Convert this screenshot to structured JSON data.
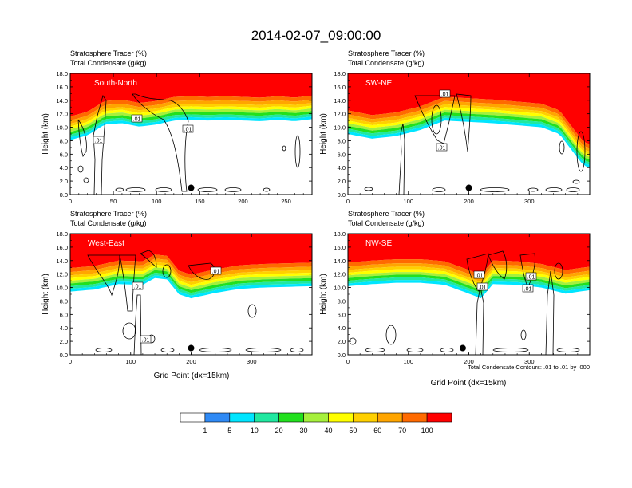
{
  "figure": {
    "title": "2014-02-07_09:00:00",
    "footnote": "Total Condensate Contours: .01 to .01 by .000"
  },
  "colorbar": {
    "colors": [
      "#ffffff",
      "#2f8af5",
      "#00e5ff",
      "#20e8a0",
      "#22e01e",
      "#a6f03c",
      "#ffff00",
      "#ffd000",
      "#ffa500",
      "#ff6a00",
      "#ff0000"
    ],
    "labels": [
      "1",
      "5",
      "10",
      "20",
      "30",
      "40",
      "50",
      "60",
      "70",
      "100"
    ]
  },
  "chart_data": [
    {
      "type": "heatmap",
      "panel": "South-North",
      "title_lines": [
        "Stratosphere Tracer   (%)",
        "Total Condensate   (g/kg)"
      ],
      "ylabel": "Height (km)",
      "xlabel": "",
      "xlim": [
        0,
        280
      ],
      "ylim": [
        0,
        18
      ],
      "x_ticks": [
        "0",
        "50",
        "100",
        "150",
        "200",
        "250"
      ],
      "y_ticks": [
        "0.0",
        "2.0",
        "4.0",
        "6.0",
        "8.0",
        "10.0",
        "12.0",
        "14.0",
        "16.0",
        "18.0"
      ],
      "contour_labels": [
        ".01",
        ".01",
        ".01"
      ],
      "tracer_top_profile": {
        "x": [
          0,
          20,
          40,
          60,
          80,
          100,
          120,
          140,
          160,
          180,
          200,
          220,
          240,
          260,
          280
        ],
        "y": [
          12.3,
          13.0,
          14.6,
          14.8,
          14.3,
          14.6,
          15.2,
          15.3,
          15.2,
          15.3,
          15.2,
          15.1,
          15.3,
          15.1,
          15.4
        ]
      },
      "marker": {
        "x": 140,
        "y": 1.0
      }
    },
    {
      "type": "heatmap",
      "panel": "SW-NE",
      "title_lines": [
        "Stratosphere Tracer   (%)",
        "Total Condensate   (g/kg)"
      ],
      "ylabel": "Height (km)",
      "xlabel": "",
      "xlim": [
        0,
        400
      ],
      "ylim": [
        0,
        18
      ],
      "x_ticks": [
        "0",
        "100",
        "200",
        "300"
      ],
      "y_ticks": [
        "0.0",
        "2.0",
        "4.0",
        "6.0",
        "8.0",
        "10.0",
        "12.0",
        "14.0",
        "16.0",
        "18.0"
      ],
      "contour_labels": [
        ".01",
        ".01"
      ],
      "tracer_top_profile": {
        "x": [
          0,
          40,
          80,
          120,
          160,
          200,
          240,
          280,
          320,
          350,
          370,
          390,
          400
        ],
        "y": [
          13.2,
          12.5,
          12.9,
          13.8,
          15.2,
          15.0,
          14.8,
          14.5,
          14.2,
          13.2,
          10.8,
          8.5,
          8.2
        ]
      },
      "marker": {
        "x": 200,
        "y": 1.0
      }
    },
    {
      "type": "heatmap",
      "panel": "West-East",
      "title_lines": [
        "Stratosphere Tracer   (%)",
        "Total Condensate   (g/kg)"
      ],
      "ylabel": "Height (km)",
      "xlabel": "Grid Point (dx=15km)",
      "xlim": [
        0,
        400
      ],
      "ylim": [
        0,
        18
      ],
      "x_ticks": [
        "0",
        "100",
        "200",
        "300"
      ],
      "y_ticks": [
        "0.0",
        "2.0",
        "4.0",
        "6.0",
        "8.0",
        "10.0",
        "12.0",
        "14.0",
        "16.0",
        "18.0"
      ],
      "contour_labels": [
        ".01",
        ".01",
        ".01"
      ],
      "tracer_top_profile": {
        "x": [
          0,
          40,
          80,
          120,
          140,
          160,
          180,
          200,
          240,
          280,
          320,
          360,
          400
        ],
        "y": [
          13.6,
          13.9,
          14.7,
          14.6,
          15.6,
          15.4,
          13.2,
          12.6,
          13.4,
          14.0,
          14.2,
          14.3,
          14.4
        ]
      },
      "marker": {
        "x": 200,
        "y": 1.0
      }
    },
    {
      "type": "heatmap",
      "panel": "NW-SE",
      "title_lines": [
        "Stratosphere Tracer   (%)",
        "Total Condensate   (g/kg)"
      ],
      "ylabel": "Height (km)",
      "xlabel": "Grid Point (dx=15km)",
      "xlim": [
        0,
        400
      ],
      "ylim": [
        0,
        18
      ],
      "x_ticks": [
        "0",
        "100",
        "200",
        "300"
      ],
      "y_ticks": [
        "0.0",
        "2.0",
        "4.0",
        "6.0",
        "8.0",
        "10.0",
        "12.0",
        "14.0",
        "16.0",
        "18.0"
      ],
      "contour_labels": [
        ".01",
        ".01",
        ".01",
        ".01"
      ],
      "tracer_top_profile": {
        "x": [
          0,
          40,
          80,
          120,
          160,
          200,
          220,
          240,
          280,
          320,
          360,
          400
        ],
        "y": [
          14.4,
          14.7,
          14.9,
          14.9,
          14.6,
          13.3,
          12.6,
          14.7,
          14.6,
          14.2,
          13.3,
          13.8
        ]
      },
      "marker": {
        "x": 190,
        "y": 1.0
      }
    }
  ]
}
